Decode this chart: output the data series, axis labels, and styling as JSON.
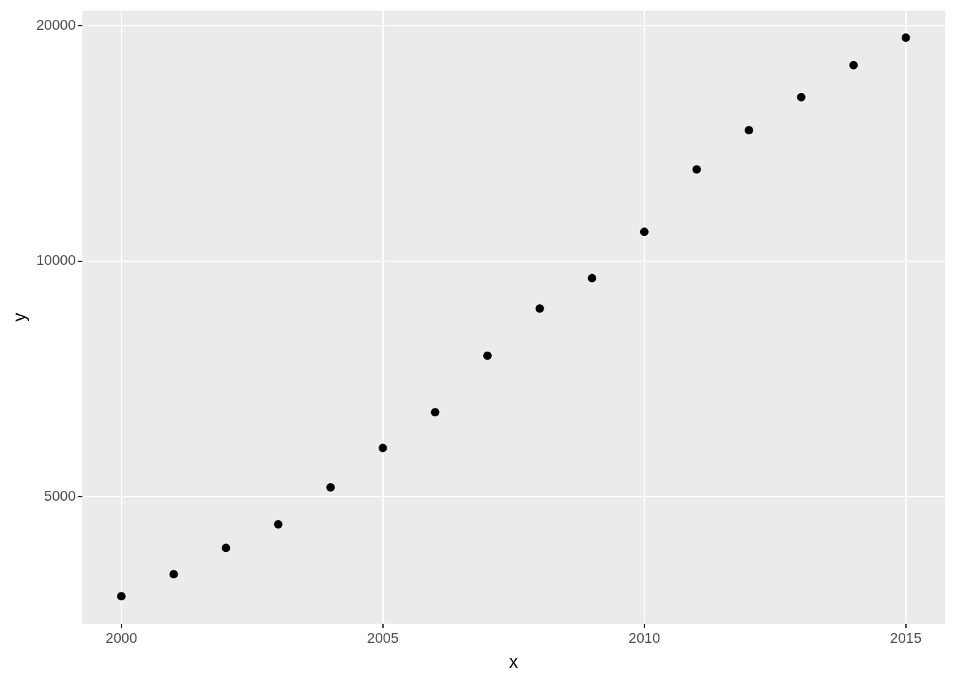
{
  "chart_data": {
    "type": "scatter",
    "xlabel": "x",
    "ylabel": "y",
    "x": [
      2000,
      2001,
      2002,
      2003,
      2004,
      2005,
      2006,
      2007,
      2008,
      2009,
      2010,
      2011,
      2012,
      2013,
      2014,
      2015
    ],
    "series": [
      {
        "color": "#000000",
        "values": [
          3730,
          3980,
          4300,
          4610,
          5140,
          5770,
          6410,
          7570,
          8700,
          9510,
          10900,
          13100,
          14700,
          16200,
          17800,
          19300
        ]
      }
    ],
    "xlim": [
      1999.25,
      2015.75
    ],
    "xticks": [
      2000,
      2005,
      2010,
      2015
    ],
    "ylim": [
      3440,
      20900
    ],
    "yticks": [
      5000,
      10000,
      20000
    ],
    "log": "y",
    "grid": true,
    "legend": false,
    "marker": "circle"
  }
}
